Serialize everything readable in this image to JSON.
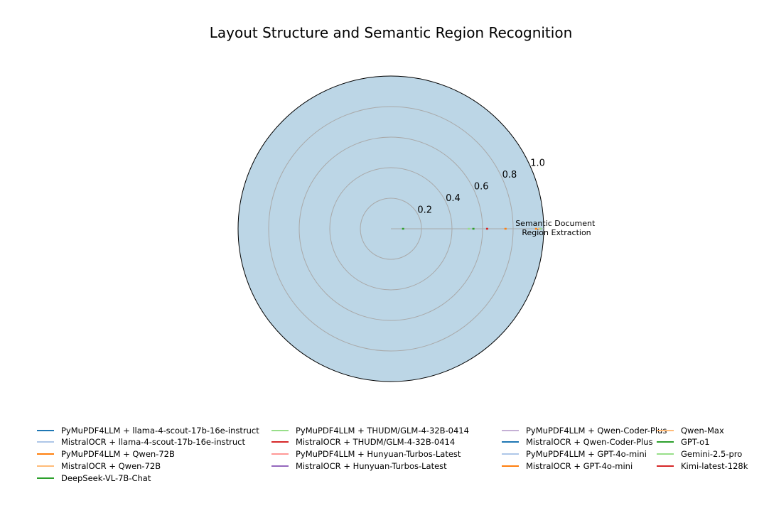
{
  "chart_data": {
    "type": "radar",
    "title": "Layout Structure and Semantic Region Recognition",
    "axes": [
      "Semantic Document\nRegion Extraction"
    ],
    "rlim": [
      0,
      1.0
    ],
    "rticks": [
      0.2,
      0.4,
      0.6,
      0.8,
      1.0
    ],
    "rtick_labels": [
      "0.2",
      "0.4",
      "0.6",
      "0.8",
      "1.0"
    ],
    "grid": true,
    "legend_placement": "bottom",
    "series": [
      {
        "name": "PyMuPDF4LLM + llama-4-scout-17b-16e-instruct",
        "color": "#1f77b4",
        "values": [
          0.98
        ]
      },
      {
        "name": "MistralOCR + llama-4-scout-17b-16e-instruct",
        "color": "#aec7e8",
        "values": [
          0.98
        ]
      },
      {
        "name": "PyMuPDF4LLM + Qwen-72B",
        "color": "#ff7f0e",
        "values": [
          0.95
        ]
      },
      {
        "name": "MistralOCR + Qwen-72B",
        "color": "#ffbb78",
        "values": [
          0.97
        ]
      },
      {
        "name": "DeepSeek-VL-7B-Chat",
        "color": "#2ca02c",
        "values": [
          0.08
        ]
      },
      {
        "name": "PyMuPDF4LLM + THUDM/GLM-4-32B-0414",
        "color": "#98df8a",
        "values": [
          0.51
        ]
      },
      {
        "name": "MistralOCR + THUDM/GLM-4-32B-0414",
        "color": "#d62728",
        "values": [
          0.97
        ]
      },
      {
        "name": "PyMuPDF4LLM + Hunyuan-Turbos-Latest",
        "color": "#ff9896",
        "values": [
          0.97
        ]
      },
      {
        "name": "MistralOCR + Hunyuan-Turbos-Latest",
        "color": "#9467bd",
        "values": [
          0.97
        ]
      },
      {
        "name": "PyMuPDF4LLM + Qwen-Coder-Plus",
        "color": "#c5b0d5",
        "values": [
          0.97
        ]
      },
      {
        "name": "MistralOCR + Qwen-Coder-Plus",
        "color": "#1f77b4",
        "values": [
          0.97
        ]
      },
      {
        "name": "PyMuPDF4LLM + GPT-4o-mini",
        "color": "#aec7e8",
        "values": [
          0.97
        ]
      },
      {
        "name": "MistralOCR + GPT-4o-mini",
        "color": "#ff7f0e",
        "values": [
          0.75
        ]
      },
      {
        "name": "Qwen-Max",
        "color": "#ffbb78",
        "values": [
          0.97
        ]
      },
      {
        "name": "GPT-o1",
        "color": "#2ca02c",
        "values": [
          0.54
        ]
      },
      {
        "name": "Gemini-2.5-pro",
        "color": "#98df8a",
        "values": [
          0.98
        ]
      },
      {
        "name": "Kimi-latest-128k",
        "color": "#d62728",
        "values": [
          0.63
        ]
      }
    ],
    "fill_color": "#bcd6e6"
  }
}
